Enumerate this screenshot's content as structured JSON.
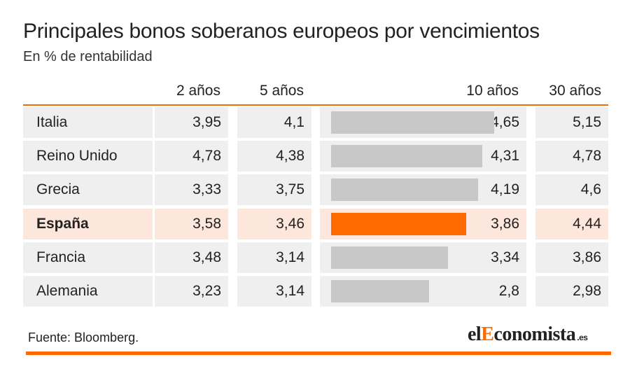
{
  "title": "Principales bonos soberanos europeos por vencimientos",
  "subtitle": "En % de rentabilidad",
  "source": "Fuente: Bloomberg.",
  "logo": {
    "part1": "el",
    "part2": "E",
    "part3": "conomista",
    "tld": ".es"
  },
  "colors": {
    "accent": "#ff6a00",
    "bar": "#c8c8c8",
    "row_bg": "#efefef",
    "highlight_bg": "#fde6dc"
  },
  "chart_data": {
    "type": "table",
    "title": "Principales bonos soberanos europeos por vencimientos",
    "subtitle": "En % de rentabilidad",
    "columns": [
      "2 años",
      "5 años",
      "10 años",
      "30 años"
    ],
    "bar_column": "10 años",
    "highlight_row": "España",
    "rows": [
      {
        "country": "Italia",
        "y2": "3,95",
        "y5": "4,1",
        "y10": "4,65",
        "y30": "5,15",
        "bar": 4.65
      },
      {
        "country": "Reino Unido",
        "y2": "4,78",
        "y5": "4,38",
        "y10": "4,31",
        "y30": "4,78",
        "bar": 4.31
      },
      {
        "country": "Grecia",
        "y2": "3,33",
        "y5": "3,75",
        "y10": "4,19",
        "y30": "4,6",
        "bar": 4.19
      },
      {
        "country": "España",
        "y2": "3,58",
        "y5": "3,46",
        "y10": "3,86",
        "y30": "4,44",
        "bar": 3.86
      },
      {
        "country": "Francia",
        "y2": "3,48",
        "y5": "3,14",
        "y10": "3,34",
        "y30": "3,86",
        "bar": 3.34
      },
      {
        "country": "Alemania",
        "y2": "3,23",
        "y5": "3,14",
        "y10": "2,8",
        "y30": "2,98",
        "bar": 2.8
      }
    ]
  }
}
